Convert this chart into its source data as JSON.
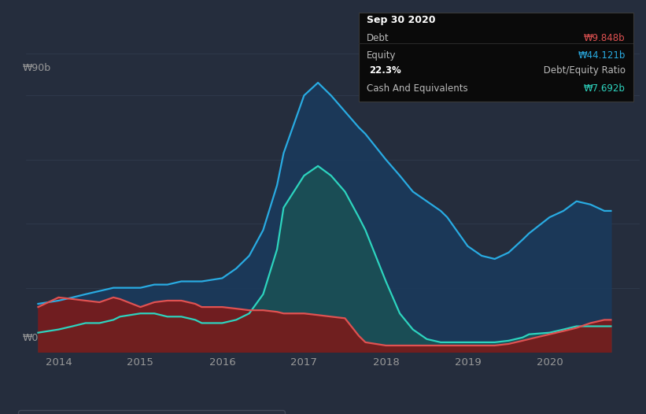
{
  "background_color": "#252d3d",
  "plot_bg_color": "#252d3d",
  "tooltip_bg": "#0a0a0a",
  "tooltip_border": "#3a3a3a",
  "debt_color": "#e05252",
  "equity_color": "#29abe2",
  "cash_color": "#2dd4bf",
  "debt_fill_color": "#7a1a1a",
  "equity_fill_color": "#1a3a5c",
  "cash_fill_color": "#1a5555",
  "grid_color": "#333d50",
  "tick_color": "#999999",
  "ylabel_90b": "₩90b",
  "ylabel_0": "₩0",
  "tooltip": {
    "title": "Sep 30 2020",
    "debt_label": "Debt",
    "debt_value": "₩9.848b",
    "equity_label": "Equity",
    "equity_value": "₩44.121b",
    "ratio_bold": "22.3%",
    "ratio_rest": " Debt/Equity Ratio",
    "cash_label": "Cash And Equivalents",
    "cash_value": "₩7.692b"
  },
  "years": [
    2013.75,
    2014.0,
    2014.17,
    2014.33,
    2014.5,
    2014.67,
    2014.75,
    2015.0,
    2015.17,
    2015.33,
    2015.5,
    2015.67,
    2015.75,
    2016.0,
    2016.17,
    2016.33,
    2016.5,
    2016.67,
    2016.75,
    2017.0,
    2017.17,
    2017.33,
    2017.5,
    2017.67,
    2017.75,
    2018.0,
    2018.17,
    2018.33,
    2018.5,
    2018.67,
    2018.75,
    2019.0,
    2019.17,
    2019.33,
    2019.5,
    2019.67,
    2019.75,
    2020.0,
    2020.17,
    2020.33,
    2020.5,
    2020.67,
    2020.75
  ],
  "debt": [
    14,
    17,
    16.5,
    16,
    15.5,
    17,
    16.5,
    14,
    15.5,
    16,
    16,
    15,
    14,
    14,
    13.5,
    13,
    13,
    12.5,
    12,
    12,
    11.5,
    11,
    10.5,
    5,
    3,
    2,
    2,
    2,
    2,
    2,
    2,
    2,
    2,
    2,
    2.5,
    3.5,
    4,
    5.5,
    6.5,
    7.5,
    9,
    10,
    10
  ],
  "equity": [
    15,
    16,
    17,
    18,
    19,
    20,
    20,
    20,
    21,
    21,
    22,
    22,
    22,
    23,
    26,
    30,
    38,
    52,
    62,
    80,
    84,
    80,
    75,
    70,
    68,
    60,
    55,
    50,
    47,
    44,
    42,
    33,
    30,
    29,
    31,
    35,
    37,
    42,
    44,
    47,
    46,
    44,
    44
  ],
  "cash": [
    6,
    7,
    8,
    9,
    9,
    10,
    11,
    12,
    12,
    11,
    11,
    10,
    9,
    9,
    10,
    12,
    18,
    32,
    45,
    55,
    58,
    55,
    50,
    42,
    38,
    22,
    12,
    7,
    4,
    3,
    3,
    3,
    3,
    3,
    3.5,
    4.5,
    5.5,
    6,
    7,
    8,
    8,
    8,
    8
  ],
  "xlim": [
    2013.6,
    2021.1
  ],
  "ylim": [
    0,
    93
  ],
  "xticks": [
    2014,
    2015,
    2016,
    2017,
    2018,
    2019,
    2020
  ],
  "xtick_labels": [
    "2014",
    "2015",
    "2016",
    "2017",
    "2018",
    "2019",
    "2020"
  ]
}
